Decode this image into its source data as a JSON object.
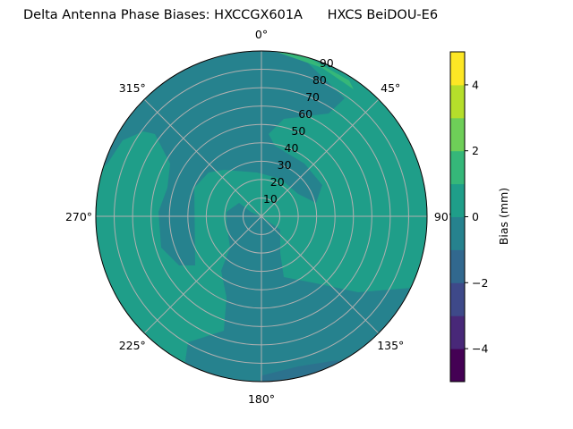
{
  "chart_data": {
    "type": "contour",
    "projection": "polar",
    "title": "Delta Antenna Phase Biases: HXCCGX601A      HXCS BeiDOU-E6",
    "theta_zero": "north",
    "theta_direction": "clockwise",
    "theta_ticks": [
      "0°",
      "45°",
      "90°",
      "135°",
      "180°",
      "225°",
      "270°",
      "315°"
    ],
    "theta_values": [
      0,
      45,
      90,
      135,
      180,
      225,
      270,
      315
    ],
    "r_ticks": [
      "10",
      "20",
      "30",
      "40",
      "50",
      "60",
      "70",
      "80",
      "90"
    ],
    "r_values": [
      10,
      20,
      30,
      40,
      50,
      60,
      70,
      80,
      90
    ],
    "rlim": [
      0,
      90
    ],
    "grid": true,
    "colorbar": {
      "label": "Bias (mm)",
      "range": [
        -5,
        5
      ],
      "levels": [
        -5,
        -4,
        -3,
        -2,
        -1,
        0,
        1,
        2,
        3,
        4,
        5
      ],
      "ticks": [
        "−4",
        "−2",
        "0",
        "2",
        "4"
      ],
      "tick_values": [
        -4,
        -2,
        0,
        2,
        4
      ],
      "colormap": "viridis",
      "colors": [
        "#440154",
        "#482878",
        "#3e4989",
        "#31688e",
        "#26828e",
        "#1f9e89",
        "#35b779",
        "#6ece58",
        "#b5de2b",
        "#fde725"
      ]
    },
    "dominant_levels": [
      "0 to 1 mm (background)",
      "-1 to 0 mm (north arc, west band, center to south)",
      "-2 to -1 mm (small patch near 170°, 85–90)"
    ]
  }
}
